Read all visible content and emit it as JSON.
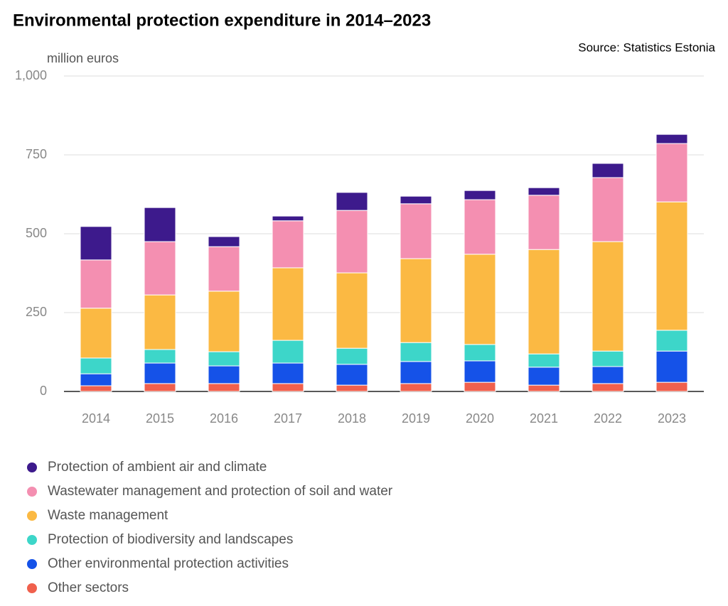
{
  "chart_data": {
    "type": "stacked_bar",
    "title": "Environmental protection expenditure in 2014–2023",
    "source": "Source: Statistics Estonia",
    "y_label": "million euros",
    "categories": [
      "2014",
      "2015",
      "2016",
      "2017",
      "2018",
      "2019",
      "2020",
      "2021",
      "2022",
      "2023"
    ],
    "series": [
      {
        "name": "Protection of ambient air and climate",
        "color": "#3d1a8c",
        "values": [
          106,
          108,
          32,
          15,
          57,
          24,
          29,
          24,
          45,
          29
        ]
      },
      {
        "name": "Wastewater management and protection of soil and water",
        "color": "#f48fb1",
        "values": [
          153,
          169,
          141,
          149,
          198,
          174,
          173,
          172,
          203,
          185
        ]
      },
      {
        "name": "Waste management",
        "color": "#fbb943",
        "values": [
          158,
          173,
          192,
          230,
          239,
          266,
          286,
          331,
          347,
          407
        ]
      },
      {
        "name": "Protection of biodiversity and landscapes",
        "color": "#3dd6c9",
        "values": [
          50,
          43,
          45,
          72,
          51,
          60,
          52,
          42,
          49,
          66
        ]
      },
      {
        "name": "Other environmental protection activities",
        "color": "#1552e8",
        "values": [
          38,
          65,
          56,
          65,
          66,
          70,
          68,
          57,
          54,
          99
        ]
      },
      {
        "name": "Other sectors",
        "color": "#f0604d",
        "values": [
          18,
          25,
          25,
          25,
          20,
          25,
          29,
          20,
          25,
          29
        ]
      }
    ],
    "ylim": [
      0,
      1000
    ],
    "yticks": [
      0,
      250,
      500,
      750,
      {
        "value": 1000,
        "label": "1,000"
      }
    ],
    "grid": true
  }
}
